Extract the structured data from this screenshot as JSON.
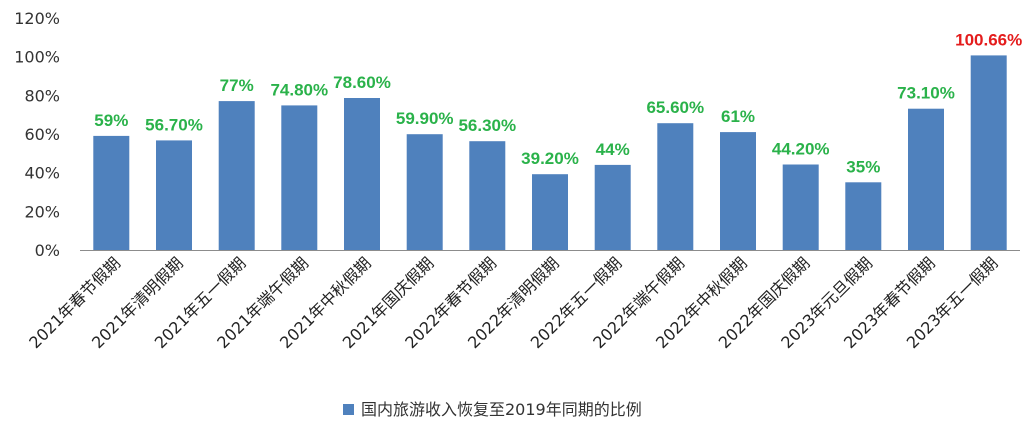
{
  "chart_data": {
    "type": "bar",
    "categories": [
      "2021年春节假期",
      "2021年清明假期",
      "2021年五一假期",
      "2021年端午假期",
      "2021年中秋假期",
      "2021年国庆假期",
      "2022年春节假期",
      "2022年清明假期",
      "2022年五一假期",
      "2022年端午假期",
      "2022年中秋假期",
      "2022年国庆假期",
      "2023年元旦假期",
      "2023年春节假期",
      "2023年五一假期"
    ],
    "series": [
      {
        "name": "国内旅游收入恢复至2019年同期的比例",
        "values": [
          59,
          56.7,
          77,
          74.8,
          78.6,
          59.9,
          56.3,
          39.2,
          44,
          65.6,
          61,
          44.2,
          35,
          73.1,
          100.66
        ],
        "labels": [
          "59%",
          "56.70%",
          "77%",
          "74.80%",
          "78.60%",
          "59.90%",
          "56.30%",
          "39.20%",
          "44%",
          "65.60%",
          "61%",
          "44.20%",
          "35%",
          "73.10%",
          "100.66%"
        ],
        "label_colors": [
          "#2AB24A",
          "#2AB24A",
          "#2AB24A",
          "#2AB24A",
          "#2AB24A",
          "#2AB24A",
          "#2AB24A",
          "#2AB24A",
          "#2AB24A",
          "#2AB24A",
          "#2AB24A",
          "#2AB24A",
          "#2AB24A",
          "#2AB24A",
          "#E41C1C"
        ]
      }
    ],
    "y_ticks": [
      "0%",
      "20%",
      "40%",
      "60%",
      "80%",
      "100%",
      "120%"
    ],
    "ylim": [
      0,
      120
    ],
    "grid": false,
    "legend_position": "bottom",
    "bar_color": "#4F81BD",
    "title": "",
    "xlabel": "",
    "ylabel": ""
  }
}
